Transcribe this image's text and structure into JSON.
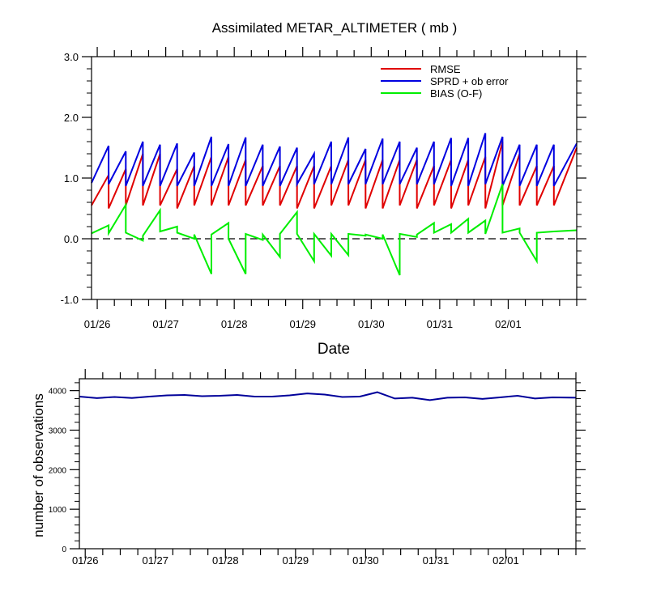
{
  "chart_data": [
    {
      "type": "line",
      "title": "Assimilated METAR_ALTIMETER ( mb )",
      "xlabel": "Date",
      "ylabel": "",
      "ylim": [
        -1.0,
        3.0
      ],
      "yticks": [
        -1.0,
        0.0,
        1.0,
        2.0,
        3.0
      ],
      "ytick_labels": [
        "-1.0",
        "0.0",
        "1.0",
        "2.0",
        "3.0"
      ],
      "xlim": [
        0,
        85
      ],
      "x_unit": "6-hourly cycles since 01/25 18Z",
      "date_ticks": [
        {
          "x": 1,
          "label": "01/26"
        },
        {
          "x": 13,
          "label": "01/27"
        },
        {
          "x": 25,
          "label": "01/28"
        },
        {
          "x": 37,
          "label": "01/29"
        },
        {
          "x": 49,
          "label": "01/30"
        },
        {
          "x": 61,
          "label": "01/31"
        },
        {
          "x": 73,
          "label": "02/01"
        }
      ],
      "legend_position": "top-right",
      "reference_line": {
        "y": 0.0,
        "style": "dashed"
      },
      "series": [
        {
          "name": "RMSE",
          "color": "#e00000",
          "points": [
            [
              0,
              0.55
            ],
            [
              3,
              1.05
            ],
            [
              3,
              0.5
            ],
            [
              6,
              1.15
            ],
            [
              6,
              0.55
            ],
            [
              9,
              1.4
            ],
            [
              9,
              0.55
            ],
            [
              12,
              1.4
            ],
            [
              12,
              0.55
            ],
            [
              15,
              1.15
            ],
            [
              15,
              0.5
            ],
            [
              18,
              1.2
            ],
            [
              18,
              0.55
            ],
            [
              21,
              1.35
            ],
            [
              21,
              0.55
            ],
            [
              24,
              1.35
            ],
            [
              24,
              0.55
            ],
            [
              27,
              1.3
            ],
            [
              27,
              0.55
            ],
            [
              30,
              1.2
            ],
            [
              30,
              0.55
            ],
            [
              33,
              1.2
            ],
            [
              33,
              0.55
            ],
            [
              36,
              1.2
            ],
            [
              36,
              0.5
            ],
            [
              39,
              1.2
            ],
            [
              39,
              0.5
            ],
            [
              42,
              1.2
            ],
            [
              42,
              0.55
            ],
            [
              45,
              1.3
            ],
            [
              45,
              0.55
            ],
            [
              48,
              1.3
            ],
            [
              48,
              0.5
            ],
            [
              51,
              1.3
            ],
            [
              51,
              0.5
            ],
            [
              54,
              1.3
            ],
            [
              54,
              0.55
            ],
            [
              57,
              1.3
            ],
            [
              57,
              0.5
            ],
            [
              60,
              1.2
            ],
            [
              60,
              0.55
            ],
            [
              63,
              1.3
            ],
            [
              63,
              0.5
            ],
            [
              66,
              1.3
            ],
            [
              66,
              0.55
            ],
            [
              69,
              1.35
            ],
            [
              69,
              0.5
            ],
            [
              72,
              1.6
            ],
            [
              72,
              0.55
            ],
            [
              75,
              1.4
            ],
            [
              75,
              0.55
            ],
            [
              78,
              1.2
            ],
            [
              78,
              0.55
            ],
            [
              81,
              1.2
            ],
            [
              81,
              0.55
            ],
            [
              85,
              1.5
            ]
          ]
        },
        {
          "name": "SPRD + ob error",
          "color": "#0000e0",
          "points": [
            [
              0,
              0.92
            ],
            [
              3,
              1.53
            ],
            [
              3,
              0.9
            ],
            [
              6,
              1.44
            ],
            [
              6,
              0.87
            ],
            [
              9,
              1.6
            ],
            [
              9,
              0.87
            ],
            [
              12,
              1.55
            ],
            [
              12,
              0.87
            ],
            [
              15,
              1.57
            ],
            [
              15,
              0.87
            ],
            [
              18,
              1.42
            ],
            [
              18,
              0.87
            ],
            [
              21,
              1.68
            ],
            [
              21,
              0.87
            ],
            [
              24,
              1.56
            ],
            [
              24,
              0.87
            ],
            [
              27,
              1.67
            ],
            [
              27,
              0.87
            ],
            [
              30,
              1.55
            ],
            [
              30,
              0.87
            ],
            [
              33,
              1.52
            ],
            [
              33,
              0.87
            ],
            [
              36,
              1.5
            ],
            [
              36,
              0.9
            ],
            [
              39,
              1.4
            ],
            [
              39,
              0.9
            ],
            [
              42,
              1.6
            ],
            [
              42,
              0.9
            ],
            [
              45,
              1.67
            ],
            [
              45,
              0.9
            ],
            [
              48,
              1.48
            ],
            [
              48,
              0.9
            ],
            [
              51,
              1.65
            ],
            [
              51,
              0.9
            ],
            [
              54,
              1.6
            ],
            [
              54,
              0.9
            ],
            [
              57,
              1.5
            ],
            [
              57,
              0.9
            ],
            [
              60,
              1.6
            ],
            [
              60,
              0.9
            ],
            [
              63,
              1.66
            ],
            [
              63,
              0.87
            ],
            [
              66,
              1.66
            ],
            [
              66,
              0.87
            ],
            [
              69,
              1.74
            ],
            [
              69,
              0.9
            ],
            [
              72,
              1.68
            ],
            [
              72,
              0.87
            ],
            [
              75,
              1.55
            ],
            [
              75,
              0.87
            ],
            [
              78,
              1.55
            ],
            [
              78,
              0.87
            ],
            [
              81,
              1.55
            ],
            [
              81,
              0.87
            ],
            [
              85,
              1.57
            ]
          ]
        },
        {
          "name": "BIAS (O-F)",
          "color": "#00ee00",
          "points": [
            [
              0,
              0.09
            ],
            [
              3,
              0.22
            ],
            [
              3,
              0.09
            ],
            [
              6,
              0.56
            ],
            [
              6,
              0.1
            ],
            [
              9,
              -0.03
            ],
            [
              9,
              0.05
            ],
            [
              12,
              0.47
            ],
            [
              12,
              0.12
            ],
            [
              15,
              0.2
            ],
            [
              15,
              0.1
            ],
            [
              18,
              0.0
            ],
            [
              18,
              0.07
            ],
            [
              21,
              -0.58
            ],
            [
              21,
              0.07
            ],
            [
              24,
              0.26
            ],
            [
              24,
              0.0
            ],
            [
              27,
              -0.58
            ],
            [
              27,
              0.08
            ],
            [
              30,
              -0.02
            ],
            [
              30,
              0.07
            ],
            [
              33,
              -0.3
            ],
            [
              33,
              0.08
            ],
            [
              36,
              0.44
            ],
            [
              36,
              0.08
            ],
            [
              39,
              -0.37
            ],
            [
              39,
              0.08
            ],
            [
              42,
              -0.28
            ],
            [
              42,
              0.08
            ],
            [
              45,
              -0.27
            ],
            [
              45,
              0.08
            ],
            [
              48,
              0.05
            ],
            [
              48,
              0.07
            ],
            [
              51,
              0.0
            ],
            [
              51,
              0.07
            ],
            [
              54,
              -0.6
            ],
            [
              54,
              0.08
            ],
            [
              57,
              0.03
            ],
            [
              57,
              0.07
            ],
            [
              60,
              0.26
            ],
            [
              60,
              0.1
            ],
            [
              63,
              0.24
            ],
            [
              63,
              0.1
            ],
            [
              66,
              0.33
            ],
            [
              66,
              0.1
            ],
            [
              69,
              0.3
            ],
            [
              69,
              0.08
            ],
            [
              72,
              0.9
            ],
            [
              72,
              0.1
            ],
            [
              75,
              0.17
            ],
            [
              75,
              0.1
            ],
            [
              78,
              -0.37
            ],
            [
              78,
              0.1
            ],
            [
              81,
              0.12
            ],
            [
              81,
              0.12
            ],
            [
              85,
              0.14
            ]
          ]
        }
      ]
    },
    {
      "type": "line",
      "title": "",
      "xlabel": "",
      "ylabel": "number of observations",
      "ylim": [
        0,
        4300
      ],
      "yticks": [
        0,
        1000,
        2000,
        3000,
        4000
      ],
      "ytick_labels": [
        "0",
        "1000",
        "2000",
        "3000",
        "4000"
      ],
      "xlim": [
        0,
        85
      ],
      "date_ticks": [
        {
          "x": 1,
          "label": "01/26"
        },
        {
          "x": 13,
          "label": "01/27"
        },
        {
          "x": 25,
          "label": "01/28"
        },
        {
          "x": 37,
          "label": "01/29"
        },
        {
          "x": 49,
          "label": "01/30"
        },
        {
          "x": 61,
          "label": "01/31"
        },
        {
          "x": 73,
          "label": "02/01"
        }
      ],
      "series": [
        {
          "name": "observations",
          "color": "#00009a",
          "points": [
            [
              0,
              3850
            ],
            [
              3,
              3810
            ],
            [
              6,
              3840
            ],
            [
              9,
              3815
            ],
            [
              12,
              3850
            ],
            [
              15,
              3880
            ],
            [
              18,
              3890
            ],
            [
              21,
              3860
            ],
            [
              24,
              3870
            ],
            [
              27,
              3890
            ],
            [
              30,
              3850
            ],
            [
              33,
              3850
            ],
            [
              36,
              3880
            ],
            [
              39,
              3930
            ],
            [
              42,
              3900
            ],
            [
              45,
              3840
            ],
            [
              48,
              3850
            ],
            [
              51,
              3960
            ],
            [
              54,
              3800
            ],
            [
              57,
              3820
            ],
            [
              60,
              3760
            ],
            [
              63,
              3820
            ],
            [
              66,
              3830
            ],
            [
              69,
              3790
            ],
            [
              72,
              3830
            ],
            [
              75,
              3870
            ],
            [
              78,
              3800
            ],
            [
              81,
              3830
            ],
            [
              85,
              3820
            ]
          ]
        }
      ]
    }
  ]
}
